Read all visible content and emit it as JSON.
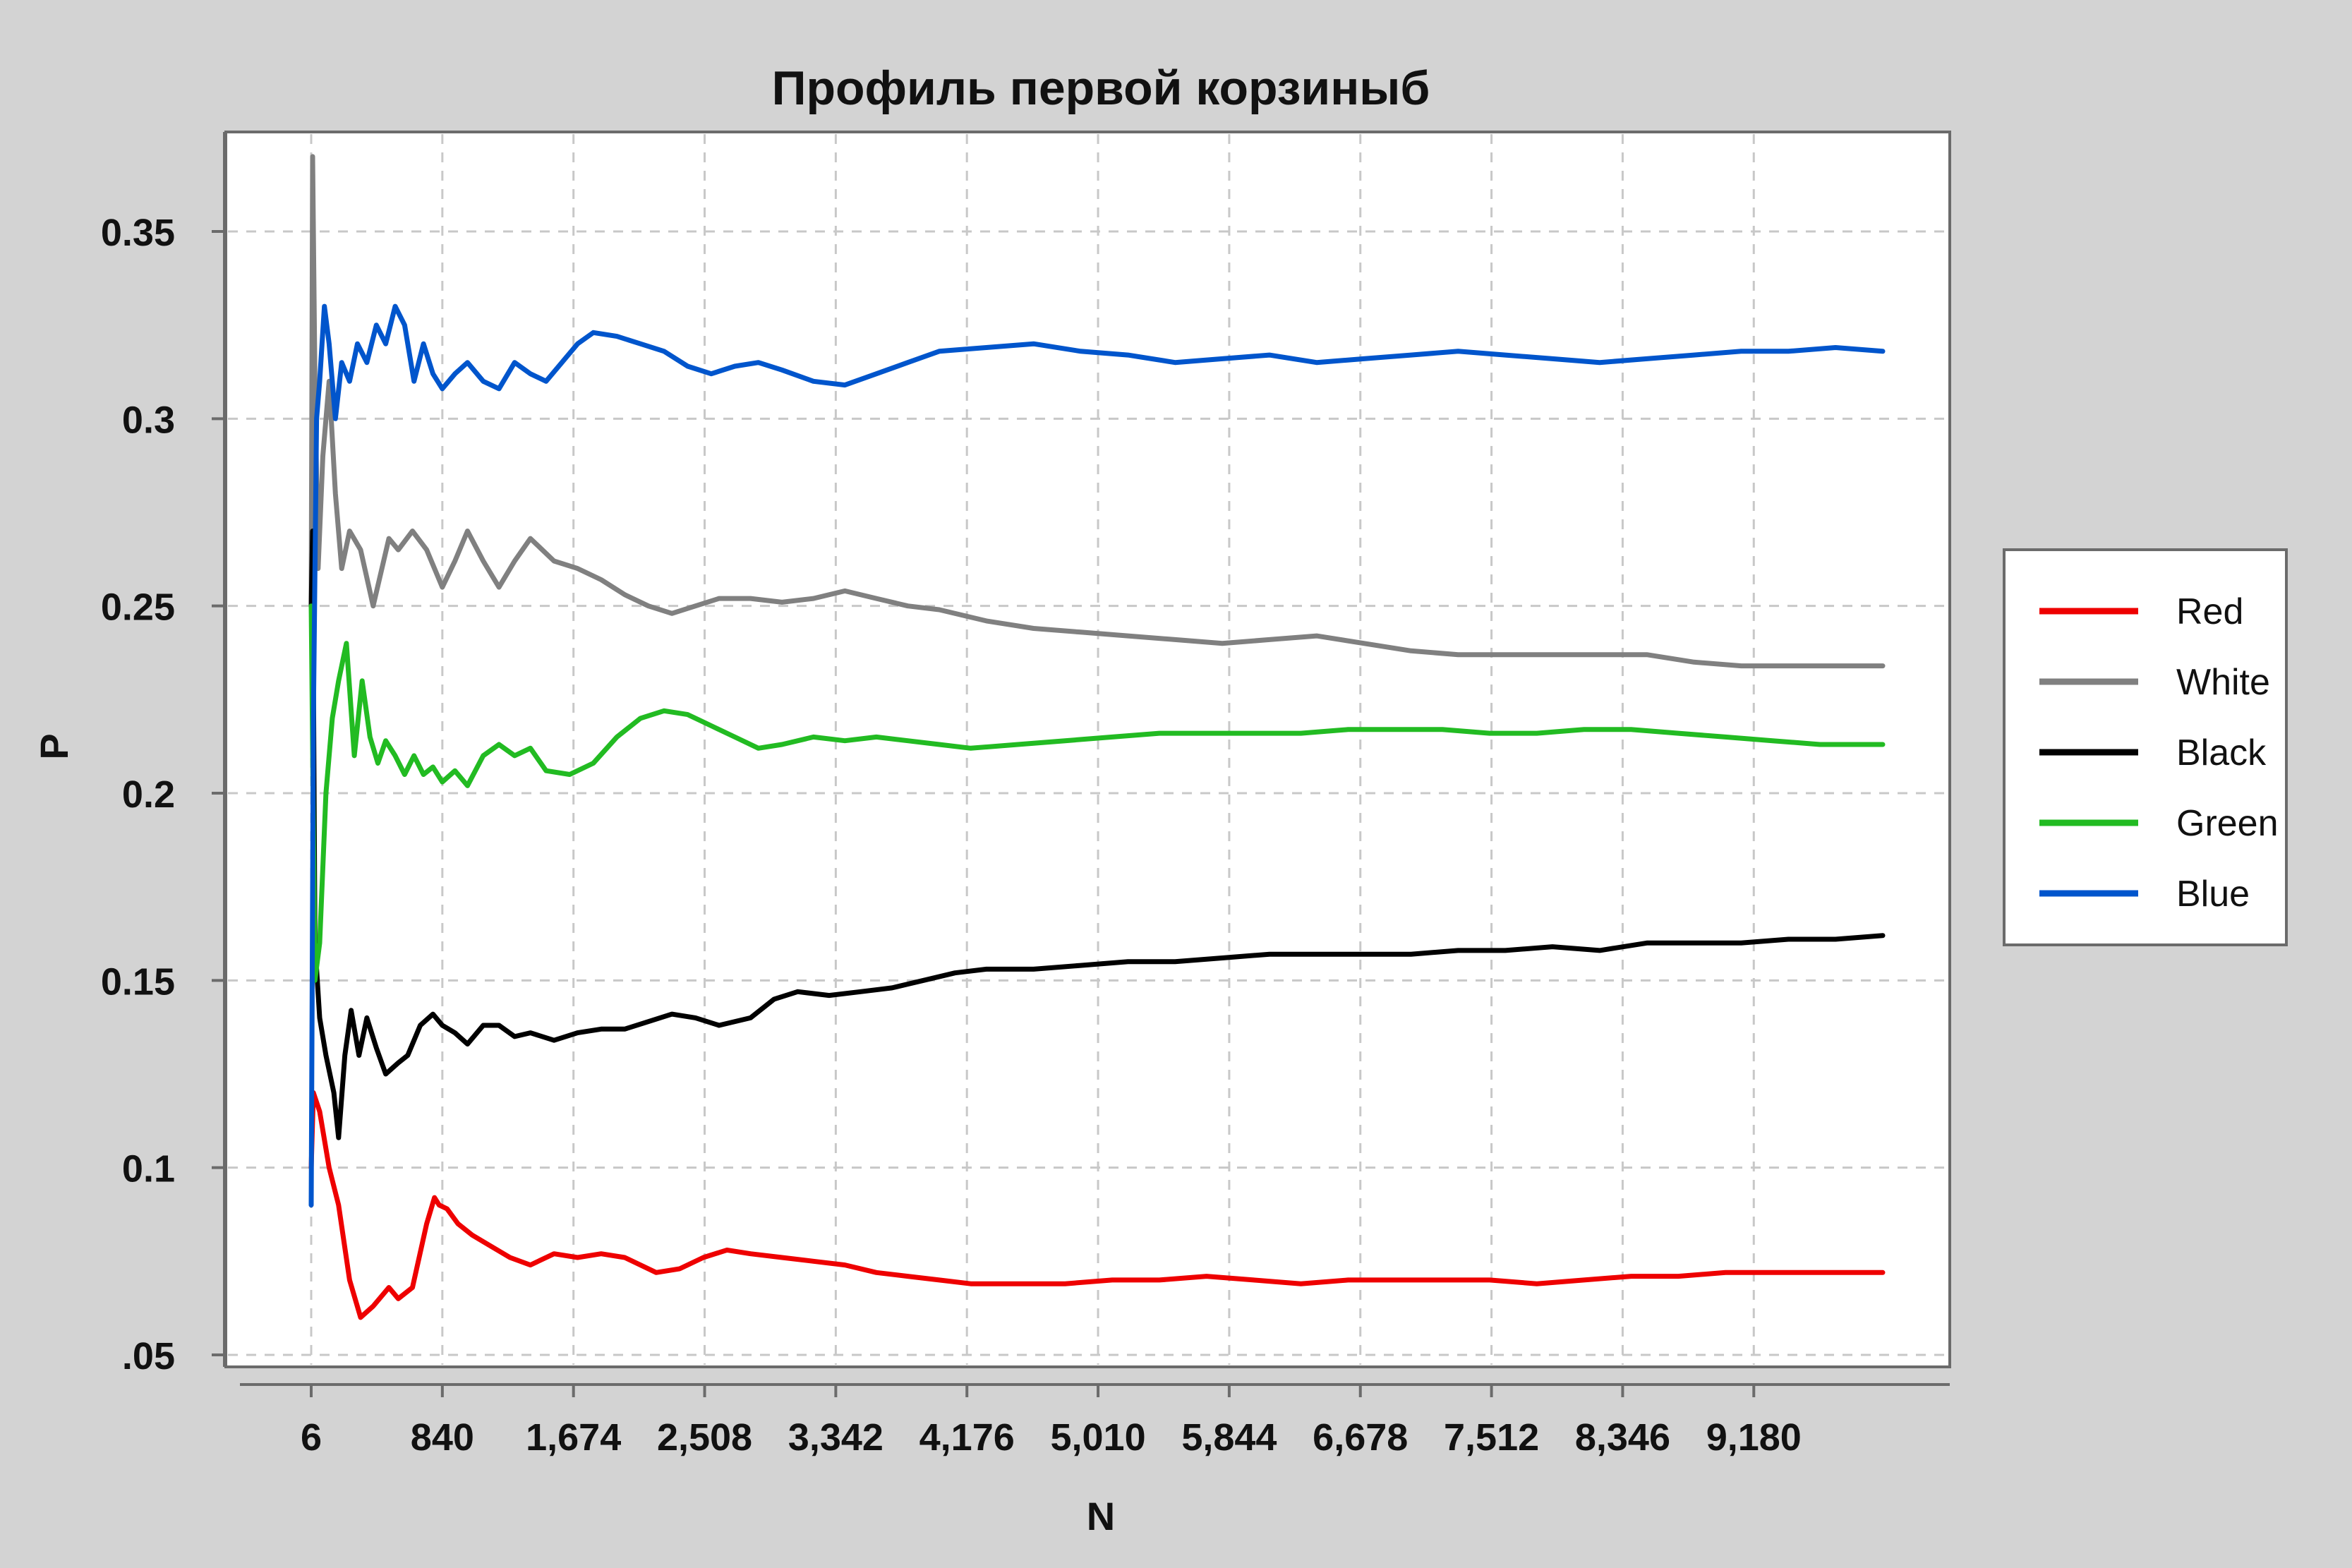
{
  "chart_data": {
    "type": "line",
    "title": "Профиль первой корзиныб",
    "xlabel": "N",
    "ylabel": "P",
    "xlim": [
      6,
      10000
    ],
    "ylim": [
      0.05,
      0.35
    ],
    "x_ticks": [
      6,
      840,
      1674,
      2508,
      3342,
      4176,
      5010,
      5844,
      6678,
      7512,
      8346,
      9180
    ],
    "x_tick_labels": [
      "6",
      "840",
      "1,674",
      "2,508",
      "3,342",
      "4,176",
      "5,010",
      "5,844",
      "6,678",
      "7,512",
      "8,346",
      "9,180"
    ],
    "y_ticks": [
      0.05,
      0.1,
      0.15,
      0.2,
      0.25,
      0.3,
      0.35
    ],
    "y_tick_labels": [
      ".05",
      "0.1",
      "0.15",
      "0.2",
      "0.25",
      "0.3",
      "0.35"
    ],
    "grid": true,
    "legend_position": "right",
    "series": [
      {
        "name": "Red",
        "color": "#ee0000",
        "x": [
          6,
          20,
          60,
          120,
          180,
          250,
          320,
          400,
          500,
          560,
          650,
          740,
          790,
          820,
          870,
          940,
          1030,
          1150,
          1270,
          1400,
          1550,
          1700,
          1850,
          2000,
          2200,
          2350,
          2500,
          2650,
          2800,
          3000,
          3200,
          3400,
          3600,
          3800,
          4000,
          4200,
          4500,
          4800,
          5100,
          5400,
          5700,
          6000,
          6300,
          6600,
          6900,
          7200,
          7500,
          7800,
          8100,
          8400,
          8700,
          9000,
          9300,
          9600,
          10000
        ],
        "y": [
          0.1,
          0.12,
          0.115,
          0.1,
          0.09,
          0.07,
          0.06,
          0.063,
          0.068,
          0.065,
          0.068,
          0.085,
          0.092,
          0.09,
          0.089,
          0.085,
          0.082,
          0.079,
          0.076,
          0.074,
          0.077,
          0.076,
          0.077,
          0.076,
          0.072,
          0.073,
          0.076,
          0.078,
          0.077,
          0.076,
          0.075,
          0.074,
          0.072,
          0.071,
          0.07,
          0.069,
          0.069,
          0.069,
          0.07,
          0.07,
          0.071,
          0.07,
          0.069,
          0.07,
          0.07,
          0.07,
          0.07,
          0.069,
          0.07,
          0.071,
          0.071,
          0.072,
          0.072,
          0.072,
          0.072
        ]
      },
      {
        "name": "White",
        "color": "#808080",
        "x": [
          6,
          15,
          30,
          50,
          80,
          120,
          160,
          200,
          250,
          320,
          400,
          500,
          560,
          650,
          740,
          840,
          920,
          1000,
          1100,
          1200,
          1300,
          1400,
          1550,
          1700,
          1850,
          2000,
          2150,
          2300,
          2450,
          2600,
          2800,
          3000,
          3200,
          3400,
          3600,
          3800,
          4000,
          4300,
          4600,
          4900,
          5200,
          5500,
          5800,
          6100,
          6400,
          6700,
          7000,
          7300,
          7600,
          7900,
          8200,
          8500,
          8800,
          9100,
          9400,
          9700,
          10000
        ],
        "y": [
          0.25,
          0.37,
          0.31,
          0.26,
          0.29,
          0.31,
          0.28,
          0.26,
          0.27,
          0.265,
          0.25,
          0.268,
          0.265,
          0.27,
          0.265,
          0.255,
          0.262,
          0.27,
          0.262,
          0.255,
          0.262,
          0.268,
          0.262,
          0.26,
          0.257,
          0.253,
          0.25,
          0.248,
          0.25,
          0.252,
          0.252,
          0.251,
          0.252,
          0.254,
          0.252,
          0.25,
          0.249,
          0.246,
          0.244,
          0.243,
          0.242,
          0.241,
          0.24,
          0.241,
          0.242,
          0.24,
          0.238,
          0.237,
          0.237,
          0.237,
          0.237,
          0.237,
          0.235,
          0.234,
          0.234,
          0.234,
          0.234
        ]
      },
      {
        "name": "Black",
        "color": "#000000",
        "x": [
          6,
          15,
          30,
          60,
          100,
          150,
          180,
          220,
          260,
          310,
          360,
          420,
          480,
          560,
          620,
          700,
          780,
          840,
          920,
          1000,
          1100,
          1200,
          1300,
          1400,
          1550,
          1700,
          1850,
          2000,
          2150,
          2300,
          2450,
          2600,
          2800,
          2950,
          3100,
          3300,
          3500,
          3700,
          3900,
          4100,
          4300,
          4600,
          4900,
          5200,
          5500,
          5800,
          6100,
          6400,
          6700,
          7000,
          7300,
          7600,
          7900,
          8200,
          8500,
          8800,
          9100,
          9400,
          9700,
          10000
        ],
        "y": [
          0.25,
          0.27,
          0.16,
          0.14,
          0.13,
          0.12,
          0.108,
          0.13,
          0.142,
          0.13,
          0.14,
          0.132,
          0.125,
          0.128,
          0.13,
          0.138,
          0.141,
          0.138,
          0.136,
          0.133,
          0.138,
          0.138,
          0.135,
          0.136,
          0.134,
          0.136,
          0.137,
          0.137,
          0.139,
          0.141,
          0.14,
          0.138,
          0.14,
          0.145,
          0.147,
          0.146,
          0.147,
          0.148,
          0.15,
          0.152,
          0.153,
          0.153,
          0.154,
          0.155,
          0.155,
          0.156,
          0.157,
          0.157,
          0.157,
          0.157,
          0.158,
          0.158,
          0.159,
          0.158,
          0.16,
          0.16,
          0.16,
          0.161,
          0.161,
          0.162
        ]
      },
      {
        "name": "Green",
        "color": "#22bb22",
        "x": [
          6,
          30,
          60,
          100,
          140,
          180,
          230,
          280,
          330,
          380,
          430,
          480,
          540,
          600,
          660,
          720,
          780,
          840,
          920,
          1000,
          1100,
          1200,
          1300,
          1400,
          1500,
          1650,
          1800,
          1950,
          2100,
          2250,
          2400,
          2550,
          2700,
          2850,
          3000,
          3200,
          3400,
          3600,
          3800,
          4000,
          4200,
          4500,
          4800,
          5100,
          5400,
          5700,
          6000,
          6300,
          6600,
          6900,
          7200,
          7500,
          7800,
          8100,
          8400,
          8700,
          9000,
          9300,
          9600,
          10000
        ],
        "y": [
          0.25,
          0.15,
          0.16,
          0.2,
          0.22,
          0.23,
          0.24,
          0.21,
          0.23,
          0.215,
          0.208,
          0.214,
          0.21,
          0.205,
          0.21,
          0.205,
          0.207,
          0.203,
          0.206,
          0.202,
          0.21,
          0.213,
          0.21,
          0.212,
          0.206,
          0.205,
          0.208,
          0.215,
          0.22,
          0.222,
          0.221,
          0.218,
          0.215,
          0.212,
          0.213,
          0.215,
          0.214,
          0.215,
          0.214,
          0.213,
          0.212,
          0.213,
          0.214,
          0.215,
          0.216,
          0.216,
          0.216,
          0.216,
          0.217,
          0.217,
          0.217,
          0.216,
          0.216,
          0.217,
          0.217,
          0.216,
          0.215,
          0.214,
          0.213,
          0.213
        ]
      },
      {
        "name": "Blue",
        "color": "#0055cc",
        "x": [
          6,
          20,
          40,
          60,
          90,
          120,
          160,
          200,
          250,
          300,
          360,
          420,
          480,
          540,
          600,
          660,
          720,
          780,
          840,
          920,
          1000,
          1100,
          1200,
          1300,
          1400,
          1500,
          1600,
          1700,
          1800,
          1950,
          2100,
          2250,
          2400,
          2550,
          2700,
          2850,
          3000,
          3200,
          3400,
          3600,
          3800,
          4000,
          4300,
          4600,
          4900,
          5200,
          5500,
          5800,
          6100,
          6400,
          6700,
          7000,
          7300,
          7600,
          7900,
          8200,
          8500,
          8800,
          9100,
          9400,
          9700,
          10000
        ],
        "y": [
          0.09,
          0.22,
          0.3,
          0.31,
          0.33,
          0.32,
          0.3,
          0.315,
          0.31,
          0.32,
          0.315,
          0.325,
          0.32,
          0.33,
          0.325,
          0.31,
          0.32,
          0.312,
          0.308,
          0.312,
          0.315,
          0.31,
          0.308,
          0.315,
          0.312,
          0.31,
          0.315,
          0.32,
          0.323,
          0.322,
          0.32,
          0.318,
          0.314,
          0.312,
          0.314,
          0.315,
          0.313,
          0.31,
          0.309,
          0.312,
          0.315,
          0.318,
          0.319,
          0.32,
          0.318,
          0.317,
          0.315,
          0.316,
          0.317,
          0.315,
          0.316,
          0.317,
          0.318,
          0.317,
          0.316,
          0.315,
          0.316,
          0.317,
          0.318,
          0.318,
          0.319,
          0.318
        ]
      }
    ]
  }
}
